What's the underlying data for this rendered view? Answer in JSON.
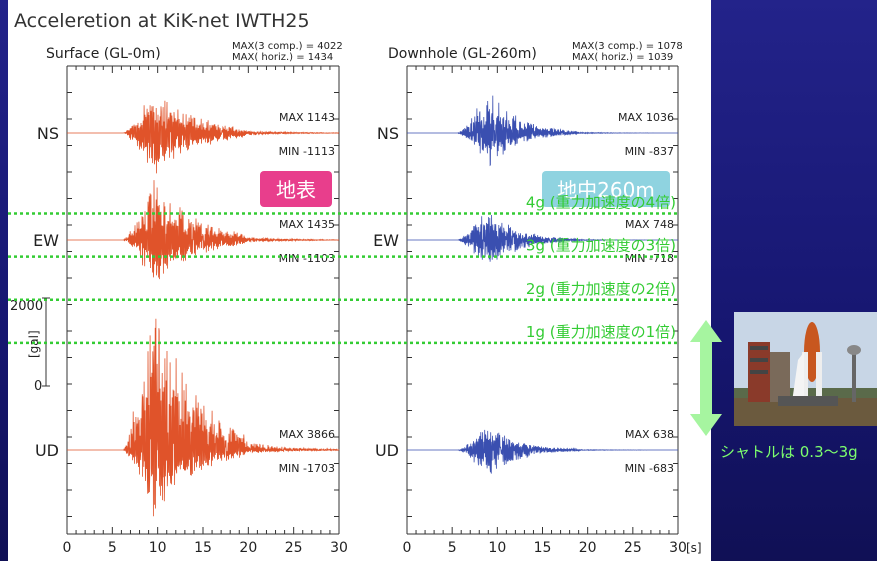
{
  "title": "Acceleretion at KiK-net IWTH25",
  "panels": [
    {
      "name": "Surface (GL-0m)",
      "max3_label": "MAX(3 comp.) = 4022",
      "maxh_label": "MAX(   horiz.) = 1434",
      "tag": "地表",
      "tag_color": "#e83e8c",
      "trace_color": "#e0532a",
      "components": [
        {
          "name": "NS",
          "max": "MAX  1143",
          "min": "MIN  -1113",
          "amp": 1143,
          "amp_min": 1113
        },
        {
          "name": "EW",
          "max": "MAX  1435",
          "min": "MIN  -1103",
          "amp": 1435,
          "amp_min": 1103
        },
        {
          "name": "UD",
          "max": "MAX  3866",
          "min": "MIN  -1703",
          "amp": 3866,
          "amp_min": 1703
        }
      ]
    },
    {
      "name": "Downhole (GL-260m)",
      "max3_label": "MAX(3 comp.) = 1078",
      "maxh_label": "MAX(   horiz.) = 1039",
      "tag": "地中260m",
      "tag_color": "#8fd3e0",
      "trace_color": "#3a4fb0",
      "components": [
        {
          "name": "NS",
          "max": "MAX  1036",
          "min": "MIN   -837",
          "amp": 1036,
          "amp_min": 837
        },
        {
          "name": "EW",
          "max": "MAX   748",
          "min": "MIN   -718",
          "amp": 748,
          "amp_min": 718
        },
        {
          "name": "UD",
          "max": "MAX   638",
          "min": "MIN   -683",
          "amp": 638,
          "amp_min": 683
        }
      ]
    }
  ],
  "chart_data": {
    "type": "line",
    "title": "Acceleretion at KiK-net IWTH25",
    "xlabel": "[s]",
    "ylabel": "[gal]",
    "xlim": [
      0,
      30
    ],
    "x_ticks": [
      "0",
      "5",
      "10",
      "15",
      "20",
      "25",
      "30"
    ],
    "scale_ticks": [
      "2000",
      "0"
    ],
    "series": [
      {
        "name": "Surface NS",
        "max": 1143,
        "min": -1113
      },
      {
        "name": "Surface EW",
        "max": 1435,
        "min": -1103
      },
      {
        "name": "Surface UD",
        "max": 3866,
        "min": -1703
      },
      {
        "name": "Downhole NS",
        "max": 1036,
        "min": -837
      },
      {
        "name": "Downhole EW",
        "max": 748,
        "min": -718
      },
      {
        "name": "Downhole UD",
        "max": 638,
        "min": -683
      }
    ]
  },
  "reference_lines": [
    {
      "label": "4g (重力加速度の4倍)",
      "value_g": 4
    },
    {
      "label": "3g (重力加速度の3倍)",
      "value_g": 3
    },
    {
      "label": "2g (重力加速度の2倍)",
      "value_g": 2
    },
    {
      "label": "1g (重力加速度の1倍)",
      "value_g": 1
    }
  ],
  "reference_color": "#33cc33",
  "shuttle_caption": "シャトルは 0.3～3g"
}
